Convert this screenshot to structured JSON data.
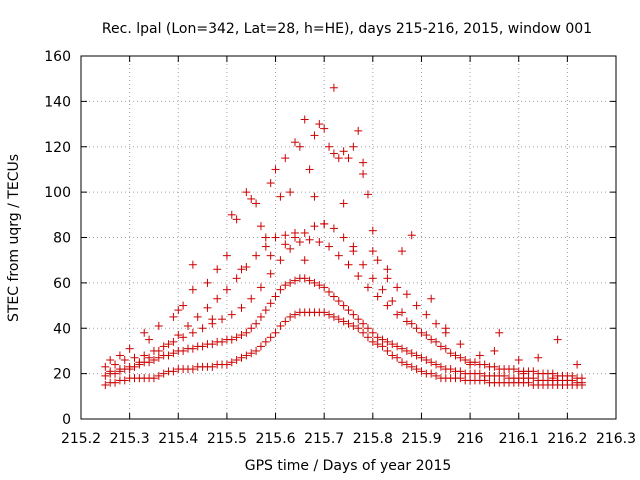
{
  "chart_data": {
    "type": "scatter",
    "title": "Rec. lpal (Lon=342, Lat=28, h=HE), days 215-216, 2015, window 001",
    "xlabel": "GPS time / Days of year 2015",
    "ylabel": "STEC from uqrg / TECUs",
    "xlim": [
      215.2,
      216.3
    ],
    "ylim": [
      0,
      160
    ],
    "xticks": [
      "215.2",
      "215.3",
      "215.4",
      "215.5",
      "215.6",
      "215.7",
      "215.8",
      "215.9",
      "216",
      "216.1",
      "216.2",
      "216.3"
    ],
    "yticks": [
      "0",
      "20",
      "40",
      "60",
      "80",
      "100",
      "120",
      "140",
      "160"
    ],
    "xtick_values": [
      215.2,
      215.3,
      215.4,
      215.5,
      215.6,
      215.7,
      215.8,
      215.9,
      216.0,
      216.1,
      216.2,
      216.3
    ],
    "ytick_values": [
      0,
      20,
      40,
      60,
      80,
      100,
      120,
      140,
      160
    ],
    "grid": true,
    "marker": "+",
    "marker_color": "#cc0000",
    "series": [
      {
        "x": [
          215.25,
          215.26,
          215.27,
          215.28,
          215.29,
          215.3,
          215.31,
          215.32,
          215.33,
          215.34,
          215.35,
          215.36,
          215.37,
          215.38,
          215.39,
          215.4,
          215.41,
          215.42,
          215.43,
          215.44,
          215.45,
          215.46,
          215.47,
          215.48,
          215.49,
          215.5,
          215.51,
          215.52,
          215.53,
          215.54,
          215.55,
          215.56,
          215.57,
          215.58,
          215.59,
          215.6,
          215.61,
          215.62,
          215.63,
          215.64,
          215.65,
          215.66,
          215.67,
          215.68,
          215.69,
          215.7,
          215.71,
          215.72,
          215.73,
          215.74,
          215.75,
          215.76,
          215.77,
          215.78,
          215.79,
          215.8,
          215.81,
          215.82,
          215.83,
          215.84,
          215.85,
          215.86,
          215.87,
          215.88,
          215.89,
          215.9,
          215.91,
          215.92,
          215.93,
          215.94,
          215.95,
          215.96,
          215.97,
          215.98,
          215.99,
          216.0,
          216.01,
          216.02,
          216.03,
          216.04,
          216.05,
          216.06,
          216.07,
          216.08,
          216.09,
          216.1,
          216.11,
          216.12,
          216.13,
          216.14,
          216.15,
          216.16,
          216.17,
          216.18,
          216.19,
          216.2,
          216.21,
          216.22,
          216.23
        ],
        "y": [
          15,
          16,
          16,
          17,
          17,
          18,
          18,
          18,
          18,
          18,
          18,
          19,
          20,
          21,
          21,
          22,
          22,
          22,
          22,
          23,
          23,
          23,
          23,
          24,
          24,
          24,
          25,
          26,
          27,
          28,
          29,
          30,
          32,
          34,
          36,
          38,
          41,
          43,
          45,
          46,
          47,
          47,
          47,
          47,
          47,
          47,
          46,
          45,
          44,
          43,
          42,
          41,
          40,
          38,
          36,
          34,
          33,
          32,
          30,
          28,
          27,
          25,
          24,
          23,
          22,
          21,
          20,
          20,
          19,
          18,
          18,
          18,
          18,
          18,
          17,
          17,
          17,
          17,
          17,
          16,
          16,
          16,
          16,
          16,
          16,
          16,
          16,
          16,
          15,
          15,
          15,
          15,
          15,
          15,
          15,
          15,
          15,
          15,
          15
        ]
      },
      {
        "x": [
          215.25,
          215.26,
          215.27,
          215.28,
          215.29,
          215.3,
          215.31,
          215.32,
          215.33,
          215.34,
          215.35,
          215.36,
          215.37,
          215.38,
          215.39,
          215.4,
          215.41,
          215.42,
          215.43,
          215.44,
          215.45,
          215.46,
          215.47,
          215.48,
          215.49,
          215.5,
          215.51,
          215.52,
          215.53,
          215.54,
          215.55,
          215.56,
          215.57,
          215.58,
          215.59,
          215.6,
          215.61,
          215.62,
          215.63,
          215.64,
          215.65,
          215.66,
          215.67,
          215.68,
          215.69,
          215.7,
          215.71,
          215.72,
          215.73,
          215.74,
          215.75,
          215.76,
          215.77,
          215.78,
          215.79,
          215.8,
          215.81,
          215.82,
          215.83,
          215.84,
          215.85,
          215.86,
          215.87,
          215.88,
          215.89,
          215.9,
          215.91,
          215.92,
          215.93,
          215.94,
          215.95,
          215.96,
          215.97,
          215.98,
          215.99,
          216.0,
          216.01,
          216.02,
          216.03,
          216.04,
          216.05,
          216.06,
          216.07,
          216.08,
          216.09,
          216.1,
          216.11,
          216.12,
          216.13,
          216.14,
          216.15,
          216.16,
          216.17,
          216.18,
          216.19,
          216.2,
          216.21,
          216.22,
          216.23
        ],
        "y": [
          19,
          20,
          20,
          21,
          22,
          22,
          23,
          24,
          25,
          25,
          26,
          27,
          28,
          28,
          29,
          30,
          30,
          31,
          31,
          32,
          32,
          33,
          33,
          34,
          34,
          35,
          35,
          36,
          37,
          38,
          40,
          42,
          45,
          48,
          51,
          54,
          57,
          59,
          60,
          61,
          62,
          62,
          61,
          60,
          59,
          58,
          56,
          54,
          52,
          50,
          48,
          46,
          44,
          42,
          40,
          38,
          36,
          35,
          34,
          33,
          32,
          31,
          30,
          29,
          28,
          27,
          26,
          25,
          24,
          23,
          22,
          22,
          21,
          21,
          20,
          20,
          20,
          20,
          19,
          19,
          19,
          19,
          19,
          18,
          18,
          18,
          18,
          18,
          18,
          17,
          17,
          17,
          17,
          17,
          17,
          17,
          17,
          16,
          16
        ]
      },
      {
        "x": [
          215.25,
          215.27,
          215.29,
          215.31,
          215.33,
          215.35,
          215.37,
          215.39,
          215.41,
          215.43,
          215.45,
          215.47,
          215.49,
          215.51,
          215.53,
          215.55,
          215.57,
          215.59,
          215.61,
          215.63,
          215.65,
          215.67,
          215.69,
          215.71,
          215.73,
          215.75,
          215.77,
          215.79,
          215.81,
          215.83,
          215.85,
          215.87,
          215.89,
          215.91,
          215.93,
          215.95,
          215.97,
          215.99,
          216.01,
          216.03,
          216.05,
          216.07,
          216.09,
          216.11,
          216.13,
          216.15,
          216.17,
          216.19,
          216.21,
          216.23
        ],
        "y": [
          23,
          24,
          26,
          27,
          28,
          30,
          32,
          34,
          36,
          38,
          40,
          42,
          44,
          46,
          49,
          53,
          58,
          64,
          70,
          75,
          78,
          79,
          78,
          76,
          72,
          68,
          63,
          58,
          54,
          50,
          46,
          43,
          40,
          37,
          34,
          31,
          28,
          26,
          25,
          24,
          23,
          22,
          22,
          21,
          21,
          20,
          20,
          19,
          19,
          18
        ]
      },
      {
        "x": [
          215.26,
          215.28,
          215.3,
          215.32,
          215.34,
          215.36,
          215.38,
          215.4,
          215.42,
          215.44,
          215.46,
          215.48,
          215.5,
          215.52,
          215.54,
          215.56,
          215.58,
          215.6,
          215.62,
          215.64,
          215.66,
          215.68,
          215.7,
          215.72,
          215.74,
          215.76,
          215.78,
          215.8,
          215.82,
          215.84,
          215.86,
          215.88,
          215.9,
          215.92,
          215.94,
          215.96,
          215.98,
          216.0,
          216.02,
          216.04,
          216.06,
          216.08,
          216.1,
          216.12,
          216.14,
          216.16,
          216.18,
          216.2,
          216.22
        ],
        "y": [
          21,
          22,
          23,
          25,
          27,
          30,
          33,
          37,
          41,
          45,
          49,
          53,
          57,
          62,
          67,
          72,
          76,
          80,
          81,
          82,
          82,
          85,
          86,
          84,
          80,
          74,
          68,
          62,
          57,
          52,
          47,
          42,
          38,
          35,
          32,
          29,
          27,
          25,
          24,
          23,
          22,
          22,
          21,
          21,
          20,
          20,
          19,
          19,
          18
        ]
      },
      {
        "x": [
          215.26,
          215.3,
          215.33,
          215.36,
          215.39,
          215.41,
          215.43,
          215.46,
          215.48,
          215.5,
          215.52,
          215.54,
          215.55,
          215.57,
          215.58,
          215.59,
          215.6,
          215.61,
          215.62,
          215.63,
          215.64,
          215.65,
          215.66,
          215.67,
          215.68,
          215.69,
          215.7,
          215.71,
          215.72,
          215.73,
          215.74,
          215.75,
          215.76,
          215.77,
          215.78,
          215.79,
          215.8,
          215.81,
          215.83,
          215.85,
          215.87,
          215.89,
          215.91,
          215.93,
          215.95,
          215.98,
          216.02,
          216.06,
          216.1,
          216.14,
          216.18,
          216.22
        ],
        "y": [
          26,
          31,
          38,
          41,
          45,
          50,
          57,
          60,
          66,
          72,
          88,
          100,
          97,
          85,
          80,
          104,
          110,
          98,
          115,
          100,
          122,
          120,
          132,
          110,
          125,
          130,
          128,
          120,
          117,
          115,
          118,
          115,
          120,
          127,
          108,
          99,
          74,
          70,
          62,
          58,
          55,
          50,
          46,
          42,
          38,
          33,
          28,
          38,
          26,
          27,
          35,
          24
        ]
      },
      {
        "x": [
          215.28,
          215.34,
          215.4,
          215.43,
          215.47,
          215.51,
          215.53,
          215.56,
          215.59,
          215.62,
          215.64,
          215.66,
          215.68,
          215.7,
          215.72,
          215.74,
          215.76,
          215.78,
          215.8,
          215.83,
          215.86,
          215.88,
          215.92,
          215.95,
          216.0,
          216.05,
          216.11,
          216.17
        ],
        "y": [
          28,
          35,
          48,
          68,
          44,
          90,
          66,
          95,
          72,
          77,
          80,
          70,
          98,
          86,
          146,
          95,
          76,
          113,
          83,
          66,
          74,
          81,
          53,
          40,
          24,
          30,
          20,
          18
        ]
      }
    ]
  }
}
